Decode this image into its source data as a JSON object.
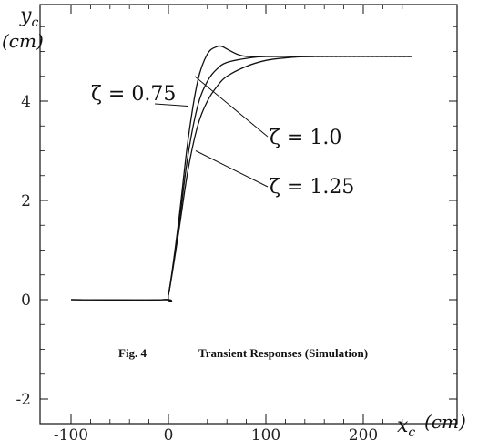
{
  "chart_data": {
    "type": "line",
    "title": "",
    "caption_label": "Fig. 4",
    "caption_text": "Transient Responses (Simulation)",
    "xlabel": "x",
    "xlabel_sub": "c",
    "xunit": "(cm)",
    "ylabel": "y",
    "ylabel_sub": "c",
    "yunit": "(cm)",
    "xlim": [
      -100,
      250
    ],
    "ylim": [
      -2,
      6
    ],
    "x_ticks": [
      -100,
      0,
      100,
      200
    ],
    "x_tick_labels": [
      "-100",
      "0",
      "100",
      "200"
    ],
    "y_ticks": [
      -2,
      0,
      2,
      4
    ],
    "y_tick_labels": [
      "-2",
      "0",
      "2",
      "4"
    ],
    "grid": false,
    "series": [
      {
        "name": "ζ = 0.75",
        "x": [
          -100,
          -5,
          0,
          10,
          20,
          30,
          40,
          50,
          55,
          60,
          70,
          80,
          100,
          150,
          250
        ],
        "y": [
          0,
          0,
          0.1,
          1.5,
          3.2,
          4.4,
          4.95,
          5.1,
          5.1,
          5.05,
          4.95,
          4.9,
          4.9,
          4.9,
          4.9
        ]
      },
      {
        "name": "ζ = 1.0",
        "x": [
          -100,
          -5,
          0,
          10,
          20,
          30,
          40,
          50,
          60,
          80,
          100,
          150,
          250
        ],
        "y": [
          0,
          0,
          0.1,
          1.4,
          2.9,
          3.9,
          4.4,
          4.65,
          4.78,
          4.86,
          4.9,
          4.9,
          4.9
        ]
      },
      {
        "name": "ζ = 1.25",
        "x": [
          -100,
          -5,
          0,
          10,
          20,
          30,
          40,
          50,
          60,
          80,
          100,
          120,
          150,
          250
        ],
        "y": [
          0,
          0,
          0.1,
          1.3,
          2.6,
          3.5,
          4.0,
          4.3,
          4.5,
          4.7,
          4.82,
          4.87,
          4.9,
          4.9
        ]
      }
    ],
    "annotations": [
      "ζ = 0.75",
      "ζ = 1.0",
      "ζ = 1.25"
    ]
  }
}
